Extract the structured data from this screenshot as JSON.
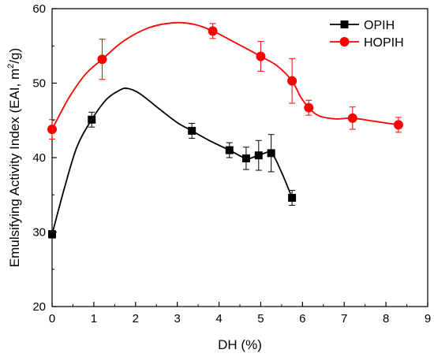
{
  "chart_data": {
    "type": "scatter",
    "title": "",
    "xlabel": "DH (%)",
    "ylabel_prefix": "Emulsifying Activity Index (EAI, m",
    "ylabel_sup": "2",
    "ylabel_suffix": "/g)",
    "xlim": [
      0,
      9
    ],
    "ylim": [
      20,
      60
    ],
    "xticks": [
      0,
      1,
      2,
      3,
      4,
      5,
      6,
      7,
      8,
      9
    ],
    "yticks": [
      20,
      30,
      40,
      50,
      60
    ],
    "grid": false,
    "legend_position": "top-right",
    "series": [
      {
        "name": "OPIH",
        "color": "#000000",
        "marker": "square",
        "points": [
          {
            "x": 0.0,
            "y": 29.7,
            "err": 0.5
          },
          {
            "x": 0.95,
            "y": 45.1,
            "err": 1.0
          },
          {
            "x": 3.35,
            "y": 43.6,
            "err": 1.0
          },
          {
            "x": 4.25,
            "y": 41.0,
            "err": 1.0
          },
          {
            "x": 4.65,
            "y": 39.9,
            "err": 1.5
          },
          {
            "x": 4.95,
            "y": 40.3,
            "err": 2.0
          },
          {
            "x": 5.25,
            "y": 40.6,
            "err": 2.5
          },
          {
            "x": 5.75,
            "y": 34.6,
            "err": 1.0
          }
        ],
        "curve": [
          [
            0.0,
            29.7
          ],
          [
            0.3,
            36.0
          ],
          [
            0.6,
            41.5
          ],
          [
            0.95,
            45.1
          ],
          [
            1.3,
            47.8
          ],
          [
            1.6,
            49.0
          ],
          [
            1.8,
            49.3
          ],
          [
            2.1,
            48.6
          ],
          [
            2.6,
            46.4
          ],
          [
            3.0,
            44.7
          ],
          [
            3.35,
            43.6
          ],
          [
            3.8,
            42.2
          ],
          [
            4.25,
            41.0
          ],
          [
            4.65,
            39.9
          ],
          [
            4.95,
            40.3
          ],
          [
            5.25,
            40.6
          ],
          [
            5.5,
            38.0
          ],
          [
            5.75,
            34.6
          ]
        ]
      },
      {
        "name": "HOPIH",
        "color": "#ff0000",
        "marker": "circle",
        "points": [
          {
            "x": 0.0,
            "y": 43.8,
            "err": 1.3
          },
          {
            "x": 1.2,
            "y": 53.2,
            "err": 2.7
          },
          {
            "x": 3.85,
            "y": 57.0,
            "err": 1.0
          },
          {
            "x": 5.0,
            "y": 53.6,
            "err": 2.0
          },
          {
            "x": 5.75,
            "y": 50.3,
            "err": 3.0
          },
          {
            "x": 6.15,
            "y": 46.7,
            "err": 1.0
          },
          {
            "x": 7.2,
            "y": 45.3,
            "err": 1.5
          },
          {
            "x": 8.3,
            "y": 44.4,
            "err": 1.0
          }
        ],
        "curve": [
          [
            0.0,
            43.8
          ],
          [
            0.4,
            48.0
          ],
          [
            0.8,
            51.2
          ],
          [
            1.2,
            53.2
          ],
          [
            1.7,
            55.6
          ],
          [
            2.3,
            57.4
          ],
          [
            2.9,
            58.1
          ],
          [
            3.4,
            57.9
          ],
          [
            3.85,
            57.0
          ],
          [
            4.4,
            55.4
          ],
          [
            5.0,
            53.6
          ],
          [
            5.4,
            52.3
          ],
          [
            5.75,
            50.3
          ],
          [
            5.95,
            48.2
          ],
          [
            6.15,
            46.7
          ],
          [
            6.4,
            45.6
          ],
          [
            6.8,
            45.2
          ],
          [
            7.2,
            45.3
          ],
          [
            7.7,
            44.9
          ],
          [
            8.3,
            44.4
          ]
        ]
      }
    ]
  }
}
